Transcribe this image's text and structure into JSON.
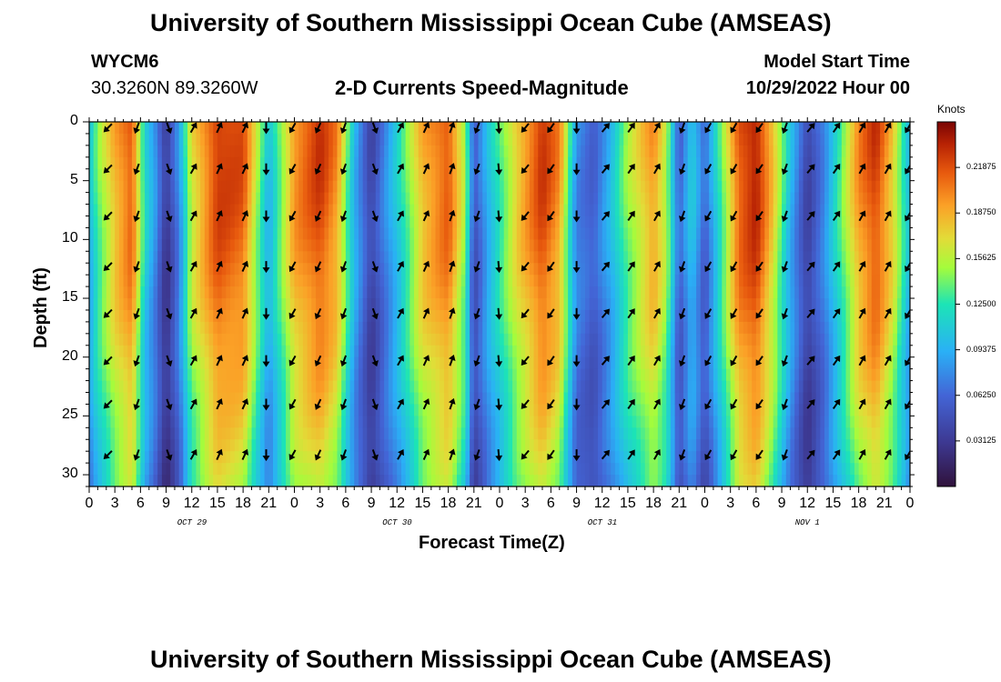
{
  "header": {
    "title": "University of Southern Mississippi Ocean Cube (AMSEAS)",
    "station_id": "WYCM6",
    "coordinates": "30.3260N  89.3260W",
    "chart_title": "2-D Currents Speed-Magnitude",
    "model_start_label": "Model Start Time",
    "model_start_value": "10/29/2022 Hour 00"
  },
  "footer": {
    "title": "University of Southern Mississippi Ocean Cube (AMSEAS)"
  },
  "chart_data": {
    "type": "heatmap",
    "title": "2-D Currents Speed-Magnitude",
    "xlabel": "Forecast Time(Z)",
    "ylabel": "Depth (ft)",
    "x_tick_labels": [
      "0",
      "3",
      "6",
      "9",
      "12",
      "15",
      "18",
      "21",
      "0",
      "3",
      "6",
      "9",
      "12",
      "15",
      "18",
      "21",
      "0",
      "3",
      "6",
      "9",
      "12",
      "15",
      "18",
      "21",
      "0",
      "3",
      "6",
      "9",
      "12",
      "15",
      "18",
      "21",
      "0"
    ],
    "x_hours": [
      0,
      3,
      6,
      9,
      12,
      15,
      18,
      21,
      24,
      27,
      30,
      33,
      36,
      39,
      42,
      45,
      48,
      51,
      54,
      57,
      60,
      63,
      66,
      69,
      72,
      75,
      78,
      81,
      84,
      87,
      90,
      93,
      96
    ],
    "day_labels": [
      {
        "label": "OCT 29",
        "hour": 12
      },
      {
        "label": "OCT 30",
        "hour": 36
      },
      {
        "label": "OCT 31",
        "hour": 60
      },
      {
        "label": "NOV 1",
        "hour": 84
      }
    ],
    "xlim": [
      0,
      96
    ],
    "ylim": [
      0,
      31
    ],
    "y_ticks": [
      0,
      5,
      10,
      15,
      20,
      25,
      30
    ],
    "y_inverted": true,
    "colorbar": {
      "title": "Knots",
      "range": [
        0,
        0.25
      ],
      "tick_values": [
        0.03125,
        0.0625,
        0.09375,
        0.125,
        0.15625,
        0.1875,
        0.21875
      ],
      "tick_labels": [
        "0.03125",
        "0.06250",
        "0.09375",
        "0.12500",
        "0.15625",
        "0.18750",
        "0.21875"
      ]
    },
    "speed_profile_knots": [
      {
        "hour": 0,
        "value": 0.1
      },
      {
        "hour": 1,
        "value": 0.14
      },
      {
        "hour": 3,
        "value": 0.19
      },
      {
        "hour": 5,
        "value": 0.22
      },
      {
        "hour": 6.5,
        "value": 0.12
      },
      {
        "hour": 7.8,
        "value": 0.08
      },
      {
        "hour": 9,
        "value": 0.03
      },
      {
        "hour": 10.5,
        "value": 0.08
      },
      {
        "hour": 12,
        "value": 0.17
      },
      {
        "hour": 15,
        "value": 0.23
      },
      {
        "hour": 18,
        "value": 0.22
      },
      {
        "hour": 21,
        "value": 0.1
      },
      {
        "hour": 24,
        "value": 0.2
      },
      {
        "hour": 27,
        "value": 0.23
      },
      {
        "hour": 29,
        "value": 0.2
      },
      {
        "hour": 31,
        "value": 0.1
      },
      {
        "hour": 33,
        "value": 0.04
      },
      {
        "hour": 36,
        "value": 0.11
      },
      {
        "hour": 39,
        "value": 0.19
      },
      {
        "hour": 42,
        "value": 0.22
      },
      {
        "hour": 44,
        "value": 0.15
      },
      {
        "hour": 45,
        "value": 0.05
      },
      {
        "hour": 47,
        "value": 0.11
      },
      {
        "hour": 50,
        "value": 0.18
      },
      {
        "hour": 53,
        "value": 0.23
      },
      {
        "hour": 55,
        "value": 0.2
      },
      {
        "hour": 57,
        "value": 0.08
      },
      {
        "hour": 59,
        "value": 0.06
      },
      {
        "hour": 61,
        "value": 0.1
      },
      {
        "hour": 63,
        "value": 0.15
      },
      {
        "hour": 66,
        "value": 0.2
      },
      {
        "hour": 67.5,
        "value": 0.16
      },
      {
        "hour": 69,
        "value": 0.06
      },
      {
        "hour": 70.5,
        "value": 0.11
      },
      {
        "hour": 72,
        "value": 0.06
      },
      {
        "hour": 74,
        "value": 0.14
      },
      {
        "hour": 76,
        "value": 0.22
      },
      {
        "hour": 78,
        "value": 0.24
      },
      {
        "hour": 80,
        "value": 0.18
      },
      {
        "hour": 82,
        "value": 0.1
      },
      {
        "hour": 84,
        "value": 0.04
      },
      {
        "hour": 86,
        "value": 0.08
      },
      {
        "hour": 88,
        "value": 0.14
      },
      {
        "hour": 90,
        "value": 0.2
      },
      {
        "hour": 92,
        "value": 0.23
      },
      {
        "hour": 94,
        "value": 0.18
      },
      {
        "hour": 96,
        "value": 0.1
      }
    ],
    "arrow_columns": [
      {
        "hour": 2.2,
        "dir": 225
      },
      {
        "hour": 5.6,
        "dir": 200
      },
      {
        "hour": 9.3,
        "dir": 160
      },
      {
        "hour": 12.2,
        "dir": 30
      },
      {
        "hour": 15.2,
        "dir": 25
      },
      {
        "hour": 18.2,
        "dir": 25
      },
      {
        "hour": 20.7,
        "dir": 180
      },
      {
        "hour": 23.8,
        "dir": 210
      },
      {
        "hour": 26.8,
        "dir": 205
      },
      {
        "hour": 29.8,
        "dir": 200
      },
      {
        "hour": 33.4,
        "dir": 160
      },
      {
        "hour": 36.4,
        "dir": 30
      },
      {
        "hour": 39.4,
        "dir": 25
      },
      {
        "hour": 42.4,
        "dir": 20
      },
      {
        "hour": 45.4,
        "dir": 200
      },
      {
        "hour": 47.9,
        "dir": 175
      },
      {
        "hour": 51.0,
        "dir": 220
      },
      {
        "hour": 54.0,
        "dir": 215
      },
      {
        "hour": 57.0,
        "dir": 180
      },
      {
        "hour": 60.4,
        "dir": 40
      },
      {
        "hour": 63.4,
        "dir": 35
      },
      {
        "hour": 66.4,
        "dir": 30
      },
      {
        "hour": 69.4,
        "dir": 200
      },
      {
        "hour": 72.4,
        "dir": 210
      },
      {
        "hour": 75.4,
        "dir": 210
      },
      {
        "hour": 78.4,
        "dir": 215
      },
      {
        "hour": 81.4,
        "dir": 200
      },
      {
        "hour": 84.4,
        "dir": 40
      },
      {
        "hour": 87.4,
        "dir": 35
      },
      {
        "hour": 90.4,
        "dir": 30
      },
      {
        "hour": 93.4,
        "dir": 30
      },
      {
        "hour": 95.8,
        "dir": 210
      }
    ],
    "arrow_depths_ft": [
      0.5,
      4,
      8,
      12.3,
      16.3,
      20.3,
      24,
      28.3
    ]
  }
}
